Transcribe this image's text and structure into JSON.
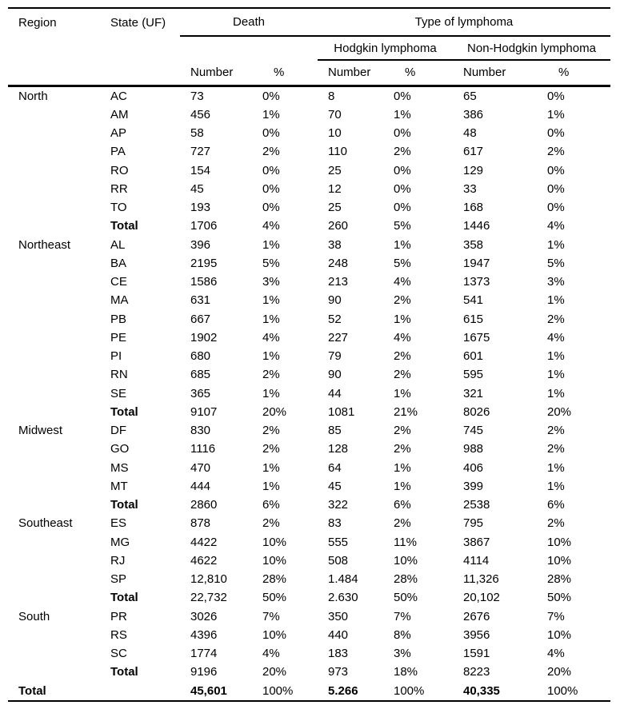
{
  "page": {
    "background_color": "#ffffff",
    "text_color": "#000000",
    "rule_color": "#000000"
  },
  "table": {
    "header": {
      "region": "Region",
      "state": "State (UF)",
      "death_group": "Death",
      "type_group": "Type of lymphoma",
      "hodgkin_group": "Hodgkin lymphoma",
      "non_hodgkin_group": "Non-Hodgkin lymphoma",
      "number": "Number",
      "percent": "%"
    },
    "columns": [
      "Region",
      "State (UF)",
      "Death Number",
      "Death %",
      "Hodgkin lymphoma Number",
      "Hodgkin lymphoma %",
      "Non-Hodgkin lymphoma Number",
      "Non-Hodgkin lymphoma %"
    ],
    "rows": [
      {
        "style": "normal",
        "cells": [
          "North",
          "AC",
          "73",
          "0%",
          "8",
          "0%",
          "65",
          "0%"
        ]
      },
      {
        "style": "normal",
        "cells": [
          "",
          "AM",
          "456",
          "1%",
          "70",
          "1%",
          "386",
          "1%"
        ]
      },
      {
        "style": "normal",
        "cells": [
          "",
          "AP",
          "58",
          "0%",
          "10",
          "0%",
          "48",
          "0%"
        ]
      },
      {
        "style": "normal",
        "cells": [
          "",
          "PA",
          "727",
          "2%",
          "110",
          "2%",
          "617",
          "2%"
        ]
      },
      {
        "style": "normal",
        "cells": [
          "",
          "RO",
          "154",
          "0%",
          "25",
          "0%",
          "129",
          "0%"
        ]
      },
      {
        "style": "normal",
        "cells": [
          "",
          "RR",
          "45",
          "0%",
          "12",
          "0%",
          "33",
          "0%"
        ]
      },
      {
        "style": "normal",
        "cells": [
          "",
          "TO",
          "193",
          "0%",
          "25",
          "0%",
          "168",
          "0%"
        ]
      },
      {
        "style": "subtotal",
        "cells": [
          "",
          "Total",
          "1706",
          "4%",
          "260",
          "5%",
          "1446",
          "4%"
        ]
      },
      {
        "style": "normal",
        "cells": [
          "Northeast",
          "AL",
          "396",
          "1%",
          "38",
          "1%",
          "358",
          "1%"
        ]
      },
      {
        "style": "normal",
        "cells": [
          "",
          "BA",
          "2195",
          "5%",
          "248",
          "5%",
          "1947",
          "5%"
        ]
      },
      {
        "style": "normal",
        "cells": [
          "",
          "CE",
          "1586",
          "3%",
          "213",
          "4%",
          "1373",
          "3%"
        ]
      },
      {
        "style": "normal",
        "cells": [
          "",
          "MA",
          "631",
          "1%",
          "90",
          "2%",
          "541",
          "1%"
        ]
      },
      {
        "style": "normal",
        "cells": [
          "",
          "PB",
          "667",
          "1%",
          "52",
          "1%",
          "615",
          "2%"
        ]
      },
      {
        "style": "normal",
        "cells": [
          "",
          "PE",
          "1902",
          "4%",
          "227",
          "4%",
          "1675",
          "4%"
        ]
      },
      {
        "style": "normal",
        "cells": [
          "",
          "PI",
          "680",
          "1%",
          "79",
          "2%",
          "601",
          "1%"
        ]
      },
      {
        "style": "normal",
        "cells": [
          "",
          "RN",
          "685",
          "2%",
          "90",
          "2%",
          "595",
          "1%"
        ]
      },
      {
        "style": "normal",
        "cells": [
          "",
          "SE",
          "365",
          "1%",
          "44",
          "1%",
          "321",
          "1%"
        ]
      },
      {
        "style": "subtotal",
        "cells": [
          "",
          "Total",
          "9107",
          "20%",
          "1081",
          "21%",
          "8026",
          "20%"
        ]
      },
      {
        "style": "normal",
        "cells": [
          "Midwest",
          "DF",
          "830",
          "2%",
          "85",
          "2%",
          "745",
          "2%"
        ]
      },
      {
        "style": "normal",
        "cells": [
          "",
          "GO",
          "1116",
          "2%",
          "128",
          "2%",
          "988",
          "2%"
        ]
      },
      {
        "style": "normal",
        "cells": [
          "",
          "MS",
          "470",
          "1%",
          "64",
          "1%",
          "406",
          "1%"
        ]
      },
      {
        "style": "normal",
        "cells": [
          "",
          "MT",
          "444",
          "1%",
          "45",
          "1%",
          "399",
          "1%"
        ]
      },
      {
        "style": "subtotal",
        "cells": [
          "",
          "Total",
          "2860",
          "6%",
          "322",
          "6%",
          "2538",
          "6%"
        ]
      },
      {
        "style": "normal",
        "cells": [
          "Southeast",
          "ES",
          "878",
          "2%",
          "83",
          "2%",
          "795",
          "2%"
        ]
      },
      {
        "style": "normal",
        "cells": [
          "",
          "MG",
          "4422",
          "10%",
          "555",
          "11%",
          "3867",
          "10%"
        ]
      },
      {
        "style": "normal",
        "cells": [
          "",
          "RJ",
          "4622",
          "10%",
          "508",
          "10%",
          "4114",
          "10%"
        ]
      },
      {
        "style": "normal",
        "cells": [
          "",
          "SP",
          "12,810",
          "28%",
          "1.484",
          "28%",
          "11,326",
          "28%"
        ]
      },
      {
        "style": "subtotal",
        "cells": [
          "",
          "Total",
          "22,732",
          "50%",
          "2.630",
          "50%",
          "20,102",
          "50%"
        ]
      },
      {
        "style": "normal",
        "cells": [
          "South",
          "PR",
          "3026",
          "7%",
          "350",
          "7%",
          "2676",
          "7%"
        ]
      },
      {
        "style": "normal",
        "cells": [
          "",
          "RS",
          "4396",
          "10%",
          "440",
          "8%",
          "3956",
          "10%"
        ]
      },
      {
        "style": "normal",
        "cells": [
          "",
          "SC",
          "1774",
          "4%",
          "183",
          "3%",
          "1591",
          "4%"
        ]
      },
      {
        "style": "subtotal",
        "cells": [
          "",
          "Total",
          "9196",
          "20%",
          "973",
          "18%",
          "8223",
          "20%"
        ]
      },
      {
        "style": "grand",
        "cells": [
          "Total",
          "",
          "45,601",
          "100%",
          "5.266",
          "100%",
          "40,335",
          "100%"
        ]
      }
    ]
  }
}
